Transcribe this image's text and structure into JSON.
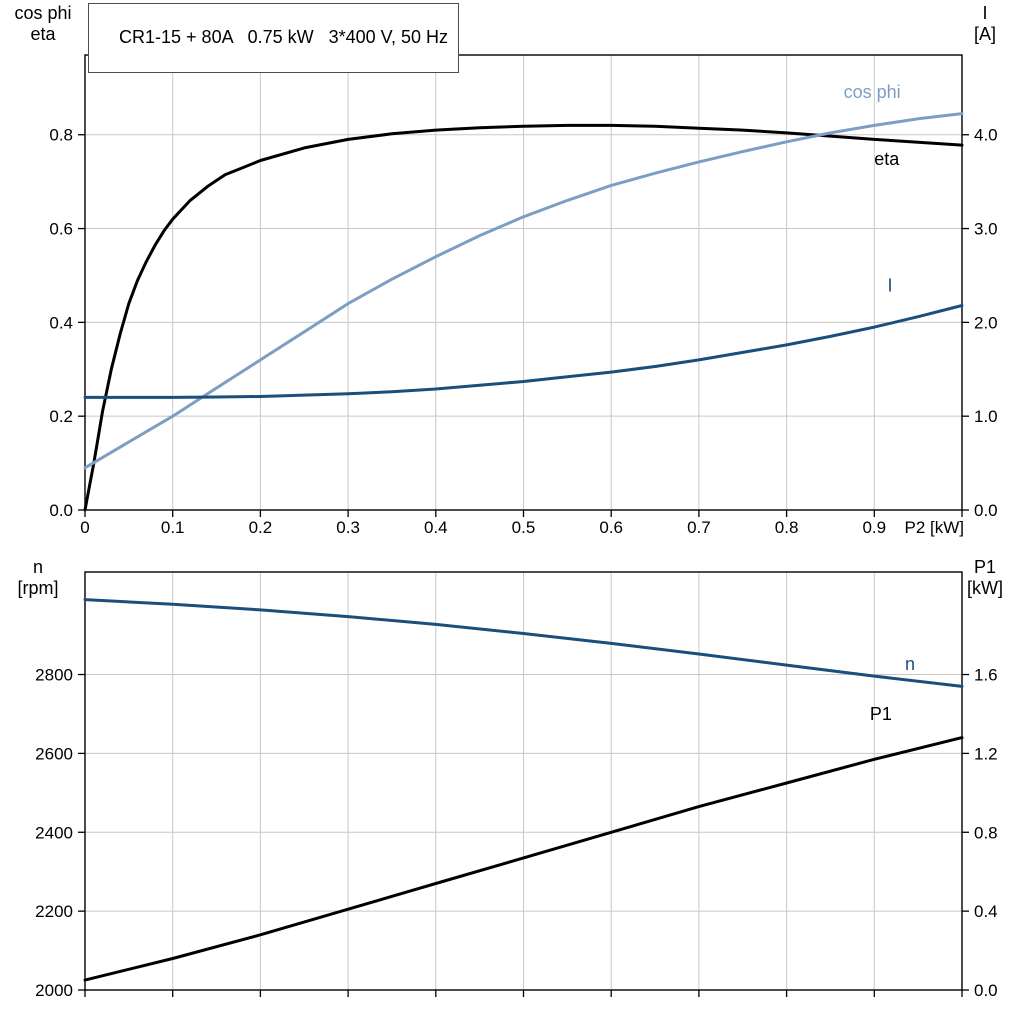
{
  "chart_data": [
    {
      "type": "line",
      "name": "motor-electrical-curves",
      "title": "CR1-15 + 80A   0.75 kW   3*400 V, 50 Hz",
      "xlabel": "P2 [kW]",
      "xlim": [
        0,
        1.0
      ],
      "xticks": [
        0,
        0.1,
        0.2,
        0.3,
        0.4,
        0.5,
        0.6,
        0.7,
        0.8,
        0.9,
        1.0
      ],
      "xtick_labels": [
        "0",
        "0.1",
        "0.2",
        "0.3",
        "0.4",
        "0.5",
        "0.6",
        "0.7",
        "0.8",
        "0.9",
        ""
      ],
      "grid": true,
      "left_axis": {
        "title": [
          "cos phi",
          "eta"
        ],
        "range": [
          0,
          0.97
        ],
        "ticks": [
          0,
          0.2,
          0.4,
          0.6,
          0.8
        ],
        "tick_labels": [
          "0.0",
          "0.2",
          "0.4",
          "0.6",
          "0.8"
        ]
      },
      "right_axis": {
        "title": [
          "I",
          "[A]"
        ],
        "range": [
          0,
          4.85
        ],
        "ticks": [
          0,
          1.0,
          2.0,
          3.0,
          4.0
        ],
        "tick_labels": [
          "0.0",
          "1.0",
          "2.0",
          "3.0",
          "4.0"
        ]
      },
      "series": [
        {
          "name": "eta",
          "axis": "left",
          "color": "#000000",
          "label": {
            "x": 0.9,
            "y": 0.735,
            "anchor": "start"
          },
          "points": [
            [
              0,
              0
            ],
            [
              0.005,
              0.05
            ],
            [
              0.01,
              0.1
            ],
            [
              0.015,
              0.155
            ],
            [
              0.02,
              0.21
            ],
            [
              0.03,
              0.3
            ],
            [
              0.04,
              0.375
            ],
            [
              0.05,
              0.44
            ],
            [
              0.06,
              0.49
            ],
            [
              0.07,
              0.53
            ],
            [
              0.08,
              0.565
            ],
            [
              0.09,
              0.595
            ],
            [
              0.1,
              0.62
            ],
            [
              0.12,
              0.66
            ],
            [
              0.14,
              0.69
            ],
            [
              0.16,
              0.715
            ],
            [
              0.18,
              0.73
            ],
            [
              0.2,
              0.745
            ],
            [
              0.25,
              0.772
            ],
            [
              0.3,
              0.79
            ],
            [
              0.35,
              0.802
            ],
            [
              0.4,
              0.81
            ],
            [
              0.45,
              0.815
            ],
            [
              0.5,
              0.818
            ],
            [
              0.55,
              0.82
            ],
            [
              0.6,
              0.82
            ],
            [
              0.65,
              0.818
            ],
            [
              0.7,
              0.814
            ],
            [
              0.75,
              0.81
            ],
            [
              0.8,
              0.804
            ],
            [
              0.85,
              0.797
            ],
            [
              0.9,
              0.79
            ],
            [
              0.95,
              0.784
            ],
            [
              1.0,
              0.778
            ]
          ]
        },
        {
          "name": "cos phi",
          "axis": "left",
          "color": "#7d9ec3",
          "label": {
            "x": 0.865,
            "y": 0.878,
            "anchor": "start"
          },
          "points": [
            [
              0,
              0.09
            ],
            [
              0.05,
              0.145
            ],
            [
              0.1,
              0.2
            ],
            [
              0.15,
              0.26
            ],
            [
              0.2,
              0.32
            ],
            [
              0.25,
              0.38
            ],
            [
              0.3,
              0.44
            ],
            [
              0.35,
              0.492
            ],
            [
              0.4,
              0.54
            ],
            [
              0.45,
              0.585
            ],
            [
              0.5,
              0.625
            ],
            [
              0.55,
              0.66
            ],
            [
              0.6,
              0.692
            ],
            [
              0.65,
              0.718
            ],
            [
              0.7,
              0.742
            ],
            [
              0.75,
              0.764
            ],
            [
              0.8,
              0.785
            ],
            [
              0.85,
              0.804
            ],
            [
              0.9,
              0.82
            ],
            [
              0.95,
              0.834
            ],
            [
              1.0,
              0.845
            ]
          ]
        },
        {
          "name": "I",
          "axis": "right",
          "color": "#1a4e7c",
          "label": {
            "x": 0.915,
            "y": 2.33,
            "anchor": "start"
          },
          "points": [
            [
              0,
              1.2
            ],
            [
              0.05,
              1.2
            ],
            [
              0.1,
              1.2
            ],
            [
              0.15,
              1.205
            ],
            [
              0.2,
              1.21
            ],
            [
              0.25,
              1.225
            ],
            [
              0.3,
              1.24
            ],
            [
              0.35,
              1.26
            ],
            [
              0.4,
              1.29
            ],
            [
              0.45,
              1.33
            ],
            [
              0.5,
              1.37
            ],
            [
              0.55,
              1.42
            ],
            [
              0.6,
              1.47
            ],
            [
              0.65,
              1.53
            ],
            [
              0.7,
              1.6
            ],
            [
              0.75,
              1.68
            ],
            [
              0.8,
              1.76
            ],
            [
              0.85,
              1.85
            ],
            [
              0.9,
              1.95
            ],
            [
              0.95,
              2.06
            ],
            [
              1.0,
              2.18
            ]
          ]
        }
      ]
    },
    {
      "type": "line",
      "name": "speed-power-curves",
      "title": "",
      "xlabel": "",
      "xlim": [
        0,
        1.0
      ],
      "xticks": [
        0,
        0.1,
        0.2,
        0.3,
        0.4,
        0.5,
        0.6,
        0.7,
        0.8,
        0.9,
        1.0
      ],
      "xtick_labels": [
        "",
        "",
        "",
        "",
        "",
        "",
        "",
        "",
        "",
        "",
        ""
      ],
      "grid": true,
      "left_axis": {
        "title": [
          "n",
          "[rpm]"
        ],
        "range": [
          2000,
          3060
        ],
        "ticks": [
          2000,
          2200,
          2400,
          2600,
          2800
        ],
        "tick_labels": [
          "2000",
          "2200",
          "2400",
          "2600",
          "2800"
        ]
      },
      "right_axis": {
        "title": [
          "P1",
          "[kW]"
        ],
        "range": [
          0,
          2.12
        ],
        "ticks": [
          0,
          0.4,
          0.8,
          1.2,
          1.6
        ],
        "tick_labels": [
          "0.0",
          "0.4",
          "0.8",
          "1.2",
          "1.6"
        ]
      },
      "series": [
        {
          "name": "n",
          "axis": "left",
          "color": "#1a4e7c",
          "label": {
            "x": 0.935,
            "y": 2812,
            "anchor": "start"
          },
          "points": [
            [
              0,
              2990
            ],
            [
              0.1,
              2978
            ],
            [
              0.2,
              2964
            ],
            [
              0.3,
              2947
            ],
            [
              0.4,
              2927
            ],
            [
              0.5,
              2904
            ],
            [
              0.6,
              2879
            ],
            [
              0.7,
              2852
            ],
            [
              0.8,
              2824
            ],
            [
              0.9,
              2796
            ],
            [
              1.0,
              2770
            ]
          ]
        },
        {
          "name": "P1",
          "axis": "right",
          "color": "#000000",
          "label": {
            "x": 0.895,
            "y": 1.37,
            "anchor": "start"
          },
          "points": [
            [
              0,
              0.05
            ],
            [
              0.1,
              0.16
            ],
            [
              0.2,
              0.28
            ],
            [
              0.3,
              0.41
            ],
            [
              0.4,
              0.54
            ],
            [
              0.5,
              0.67
            ],
            [
              0.6,
              0.8
            ],
            [
              0.7,
              0.93
            ],
            [
              0.8,
              1.05
            ],
            [
              0.9,
              1.17
            ],
            [
              1.0,
              1.28
            ]
          ]
        }
      ]
    }
  ],
  "colors": {
    "grid": "#c8c8c8",
    "frame": "#000000",
    "light_blue": "#7d9ec3",
    "dark_blue": "#1a4e7c"
  }
}
